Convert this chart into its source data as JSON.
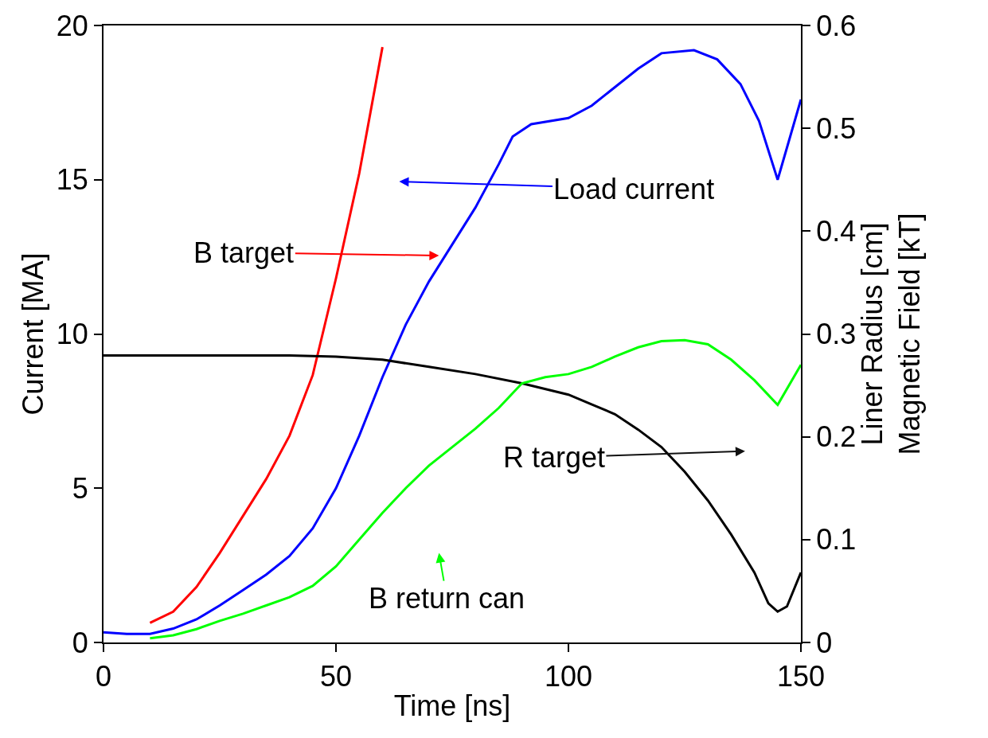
{
  "chart_data": {
    "type": "line",
    "xlabel": "Time [ns]",
    "ylabel": "Current [MA]",
    "y2label": "Liner Radius [cm]\nMagnetic Field [kT]",
    "xlim": [
      0,
      150
    ],
    "xticks": [
      0,
      50,
      100,
      150
    ],
    "ylim": [
      0,
      20
    ],
    "yticks": [
      0,
      5,
      10,
      15,
      20
    ],
    "y2lim": [
      0,
      0.6
    ],
    "y2ticks": [
      0,
      0.1,
      0.2,
      0.3,
      0.4,
      0.5,
      0.6
    ],
    "marker": "none",
    "line_style": "solid",
    "series": [
      {
        "color": "#0000ff",
        "x": [
          0,
          5,
          10,
          15,
          20,
          25,
          30,
          35,
          40,
          45,
          50,
          55,
          60,
          65,
          70,
          75,
          80,
          85,
          88,
          92,
          100,
          105,
          110,
          115,
          120,
          127,
          132,
          137,
          141,
          145,
          150
        ],
        "values": [
          0.33,
          0.28,
          0.28,
          0.45,
          0.75,
          1.2,
          1.7,
          2.2,
          2.8,
          3.7,
          5.0,
          6.7,
          8.6,
          10.3,
          11.7,
          12.9,
          14.1,
          15.5,
          16.4,
          16.8,
          17.0,
          17.4,
          18.0,
          18.6,
          19.1,
          19.2,
          18.9,
          18.1,
          16.9,
          15.0,
          17.6
        ]
      },
      {
        "color": "#ff0000",
        "axis": "y2",
        "x": [
          10,
          15,
          20,
          25,
          30,
          35,
          40,
          45,
          50,
          55,
          60
        ],
        "values": [
          0.019,
          0.03,
          0.054,
          0.087,
          0.123,
          0.159,
          0.201,
          0.26,
          0.354,
          0.456,
          0.579
        ]
      },
      {
        "color": "#000000",
        "axis": "y2",
        "x": [
          0,
          20,
          40,
          50,
          60,
          70,
          80,
          90,
          100,
          110,
          115,
          120,
          125,
          130,
          135,
          140,
          143,
          145,
          147,
          150
        ],
        "values": [
          0.279,
          0.279,
          0.279,
          0.278,
          0.275,
          0.268,
          0.261,
          0.252,
          0.241,
          0.222,
          0.207,
          0.19,
          0.166,
          0.138,
          0.105,
          0.068,
          0.038,
          0.03,
          0.035,
          0.068
        ]
      },
      {
        "color": "#00ff00",
        "axis": "y2",
        "x": [
          10,
          15,
          20,
          25,
          30,
          35,
          40,
          45,
          50,
          55,
          60,
          65,
          70,
          75,
          80,
          85,
          90,
          95,
          100,
          105,
          110,
          115,
          120,
          125,
          130,
          135,
          140,
          145,
          150
        ],
        "values": [
          0.004,
          0.007,
          0.013,
          0.021,
          0.028,
          0.036,
          0.044,
          0.055,
          0.074,
          0.1,
          0.126,
          0.15,
          0.172,
          0.19,
          0.208,
          0.228,
          0.252,
          0.258,
          0.261,
          0.268,
          0.278,
          0.287,
          0.293,
          0.294,
          0.29,
          0.275,
          0.255,
          0.231,
          0.27
        ]
      }
    ],
    "annotations": [
      "Load current",
      "B target",
      "R target",
      "B return can"
    ]
  }
}
